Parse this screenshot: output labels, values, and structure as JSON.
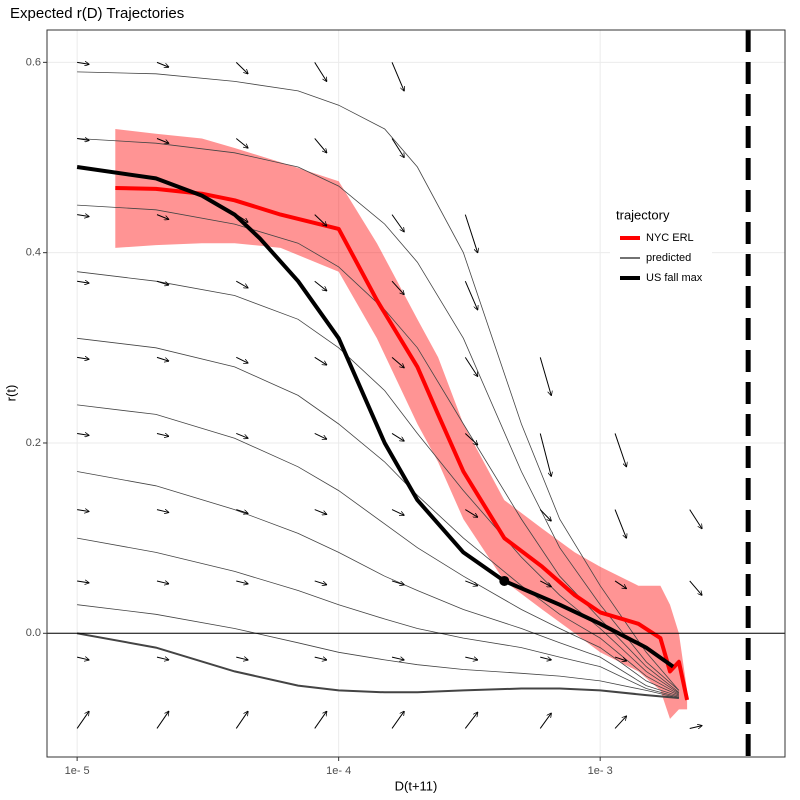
{
  "chart_data": {
    "type": "line",
    "title": "Expected r(D) Trajectories",
    "x_label": "D(t+11)",
    "y_label": "r(t)",
    "x_log": true,
    "grid": true,
    "xlim": [
      7.67e-06,
      0.00509
    ],
    "ylim": [
      -0.13,
      0.634
    ],
    "xticks": [
      {
        "value": 1e-05,
        "label": "1e- 5"
      },
      {
        "value": 0.0001,
        "label": "1e- 4"
      },
      {
        "value": 0.001,
        "label": "1e- 3"
      }
    ],
    "yticks": [
      {
        "value": 0,
        "label": "0.0"
      },
      {
        "value": 0.2,
        "label": "0.2"
      },
      {
        "value": 0.4,
        "label": "0.4"
      },
      {
        "value": 0.6,
        "label": "0.6"
      }
    ],
    "legend_title": "trajectory",
    "legend_position": "inside-right",
    "hline": 0,
    "vline": 0.00368,
    "band_color": "#ff0000",
    "series": [
      {
        "name": "NYC ERL",
        "color": "#ff0000",
        "x": [
          1.4e-05,
          2e-05,
          3e-05,
          4e-05,
          6e-05,
          0.0001,
          0.00014,
          0.0002,
          0.00024,
          0.0003,
          0.00043,
          0.0006,
          0.0008,
          0.001,
          0.0014,
          0.0017,
          0.00185,
          0.002,
          0.00215
        ],
        "values": [
          0.468,
          0.467,
          0.462,
          0.455,
          0.44,
          0.425,
          0.35,
          0.28,
          0.23,
          0.17,
          0.1,
          0.07,
          0.04,
          0.022,
          0.01,
          -0.005,
          -0.04,
          -0.03,
          -0.07
        ],
        "upper": [
          0.53,
          0.525,
          0.52,
          0.51,
          0.495,
          0.475,
          0.41,
          0.33,
          0.29,
          0.22,
          0.14,
          0.11,
          0.085,
          0.07,
          0.05,
          0.05,
          0.03,
          0.0,
          -0.06
        ],
        "lower": [
          0.405,
          0.408,
          0.41,
          0.41,
          0.405,
          0.38,
          0.31,
          0.22,
          0.18,
          0.12,
          0.055,
          0.025,
          0.0,
          -0.02,
          -0.04,
          -0.06,
          -0.09,
          -0.08,
          -0.08
        ]
      },
      {
        "name": "predicted",
        "color": "#444444",
        "x": [
          1e-05,
          2e-05,
          4e-05,
          7e-05,
          0.0001,
          0.00015,
          0.0002,
          0.0003,
          0.0005,
          0.0007,
          0.001,
          0.0015,
          0.002
        ],
        "lines": [
          {
            "values": [
              0.59,
              0.588,
              0.58,
              0.57,
              0.555,
              0.53,
              0.49,
              0.4,
              0.22,
              0.12,
              0.05,
              -0.02,
              -0.06
            ]
          },
          {
            "values": [
              0.52,
              0.515,
              0.505,
              0.49,
              0.47,
              0.43,
              0.39,
              0.31,
              0.17,
              0.09,
              0.03,
              -0.03,
              -0.06
            ]
          },
          {
            "values": [
              0.45,
              0.445,
              0.43,
              0.41,
              0.385,
              0.34,
              0.3,
              0.22,
              0.12,
              0.06,
              0.015,
              -0.035,
              -0.062
            ]
          },
          {
            "values": [
              0.38,
              0.37,
              0.355,
              0.33,
              0.3,
              0.255,
              0.21,
              0.15,
              0.08,
              0.04,
              0.005,
              -0.04,
              -0.063
            ]
          },
          {
            "values": [
              0.31,
              0.3,
              0.28,
              0.25,
              0.22,
              0.18,
              0.145,
              0.1,
              0.05,
              0.02,
              -0.005,
              -0.045,
              -0.064
            ]
          },
          {
            "values": [
              0.24,
              0.23,
              0.205,
              0.175,
              0.15,
              0.115,
              0.09,
              0.06,
              0.025,
              0.005,
              -0.015,
              -0.05,
              -0.065
            ]
          },
          {
            "values": [
              0.17,
              0.155,
              0.13,
              0.105,
              0.085,
              0.06,
              0.045,
              0.025,
              0.005,
              -0.01,
              -0.025,
              -0.055,
              -0.066
            ]
          },
          {
            "values": [
              0.1,
              0.085,
              0.065,
              0.045,
              0.03,
              0.015,
              0.005,
              -0.005,
              -0.015,
              -0.025,
              -0.035,
              -0.058,
              -0.067
            ]
          },
          {
            "values": [
              0.03,
              0.02,
              0.005,
              -0.01,
              -0.02,
              -0.028,
              -0.033,
              -0.038,
              -0.042,
              -0.045,
              -0.05,
              -0.06,
              -0.068
            ]
          },
          {
            "values": [
              0,
              -0.015,
              -0.04,
              -0.055,
              -0.06,
              -0.062,
              -0.062,
              -0.06,
              -0.058,
              -0.058,
              -0.06,
              -0.065,
              -0.068
            ]
          }
        ]
      },
      {
        "name": "US fall max",
        "color": "#000000",
        "x": [
          1e-05,
          2e-05,
          3e-05,
          4e-05,
          5e-05,
          7e-05,
          0.0001,
          0.00015,
          0.0002,
          0.0003,
          0.00043,
          0.0007,
          0.001,
          0.0015,
          0.0019
        ],
        "values": [
          0.49,
          0.478,
          0.46,
          0.44,
          0.415,
          0.37,
          0.31,
          0.2,
          0.14,
          0.085,
          0.055,
          0.03,
          0.01,
          -0.015,
          -0.035
        ],
        "marker": {
          "x": 0.00043,
          "y": 0.055
        }
      }
    ],
    "field": {
      "x": [
        1e-05,
        2.02e-05,
        4.06e-05,
        8.1e-05,
        0.00016,
        0.000305,
        0.00059,
        0.00114,
        0.0022
      ],
      "x_end": [
        1.11e-05,
        2.24e-05,
        4.5e-05,
        9e-05,
        0.000178,
        0.00034,
        0.00065,
        0.00126,
        0.00245
      ],
      "rows": [
        {
          "y": 0.6,
          "dy": [
            -0.002,
            -0.005,
            -0.012,
            -0.02,
            -0.03,
            null,
            null,
            null,
            null
          ]
        },
        {
          "y": 0.52,
          "dy": [
            -0.002,
            -0.005,
            -0.01,
            -0.015,
            -0.02,
            null,
            null,
            null,
            null
          ]
        },
        {
          "y": 0.44,
          "dy": [
            -0.002,
            -0.005,
            -0.008,
            -0.012,
            -0.018,
            -0.04,
            null,
            null,
            null
          ]
        },
        {
          "y": 0.37,
          "dy": [
            -0.002,
            -0.004,
            -0.007,
            -0.01,
            -0.014,
            -0.03,
            null,
            null,
            null
          ]
        },
        {
          "y": 0.29,
          "dy": [
            -0.002,
            -0.004,
            -0.006,
            -0.008,
            -0.011,
            -0.02,
            -0.04,
            null,
            null
          ]
        },
        {
          "y": 0.21,
          "dy": [
            -0.002,
            -0.003,
            -0.005,
            -0.006,
            -0.008,
            -0.012,
            -0.045,
            -0.035,
            null
          ]
        },
        {
          "y": 0.13,
          "dy": [
            -0.002,
            -0.003,
            -0.004,
            -0.005,
            -0.006,
            -0.008,
            -0.012,
            -0.03,
            -0.02
          ]
        },
        {
          "y": 0.055,
          "dy": [
            -0.002,
            -0.003,
            -0.003,
            -0.004,
            -0.004,
            -0.005,
            -0.006,
            -0.008,
            -0.015
          ]
        },
        {
          "y": -0.025,
          "dy": [
            -0.003,
            -0.003,
            -0.003,
            -0.003,
            -0.003,
            -0.003,
            -0.003,
            -0.004,
            null
          ]
        },
        {
          "y": -0.1,
          "dy": [
            0.018,
            0.018,
            0.018,
            0.018,
            0.018,
            0.017,
            0.016,
            0.013,
            0.003
          ]
        }
      ]
    }
  }
}
